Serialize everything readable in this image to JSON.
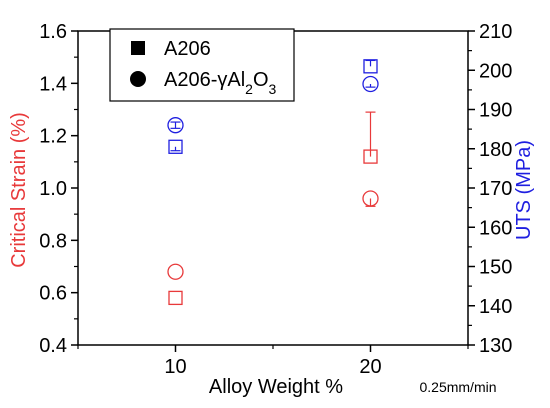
{
  "chart_data": {
    "type": "scatter",
    "xlabel": "Alloy Weight %",
    "ylabel": "Critical Strain (%)",
    "y2label": "UTS (MPa)",
    "note": "0.25mm/min",
    "xlim": [
      5,
      25
    ],
    "ylim": [
      0.4,
      1.6
    ],
    "y2lim": [
      130,
      210
    ],
    "x_ticks": [
      10,
      20
    ],
    "y_ticks": [
      0.4,
      0.6,
      0.8,
      1.0,
      1.2,
      1.4,
      1.6
    ],
    "y_tick_labels": [
      "0.4",
      "0.6",
      "0.8",
      "1.0",
      "1.2",
      "1.4",
      "1.6"
    ],
    "y2_ticks": [
      130,
      140,
      150,
      160,
      170,
      180,
      190,
      200,
      210
    ],
    "grid": false,
    "legend": {
      "placement": "top-left",
      "entries": [
        {
          "marker": "square",
          "label_parts": [
            {
              "t": "A206"
            }
          ]
        },
        {
          "marker": "circle",
          "label_parts": [
            {
              "t": "A206-γAl"
            },
            {
              "t": "2",
              "sub": true
            },
            {
              "t": "O"
            },
            {
              "t": "3",
              "sub": true
            }
          ]
        }
      ]
    },
    "colors": {
      "strain": "#e8393a",
      "uts": "#1f1fe0"
    },
    "series": [
      {
        "material": "A206",
        "quantity": "strain",
        "axis": "left",
        "marker": "square",
        "x": [
          10,
          20
        ],
        "y": [
          0.58,
          1.12
        ],
        "err_plus": [
          0.0,
          0.17
        ],
        "err_minus": [
          0.0,
          0.0
        ]
      },
      {
        "material": "A206-γAl2O3",
        "quantity": "strain",
        "axis": "left",
        "marker": "circle",
        "x": [
          10,
          20
        ],
        "y": [
          0.68,
          0.96
        ],
        "err_plus": [
          0.0,
          0.0
        ],
        "err_minus": [
          0.0,
          0.03
        ]
      },
      {
        "material": "A206",
        "quantity": "uts",
        "axis": "right",
        "marker": "square",
        "x": [
          10,
          20
        ],
        "y": [
          180.5,
          201
        ],
        "err_plus": [
          0.0,
          1.5
        ],
        "err_minus": [
          1.0,
          0.0
        ]
      },
      {
        "material": "A206-γAl2O3",
        "quantity": "uts",
        "axis": "right",
        "marker": "circle",
        "x": [
          10,
          20
        ],
        "y": [
          186,
          196.5
        ],
        "err_plus": [
          0.8,
          0.0
        ],
        "err_minus": [
          0.8,
          0.8
        ]
      }
    ]
  }
}
